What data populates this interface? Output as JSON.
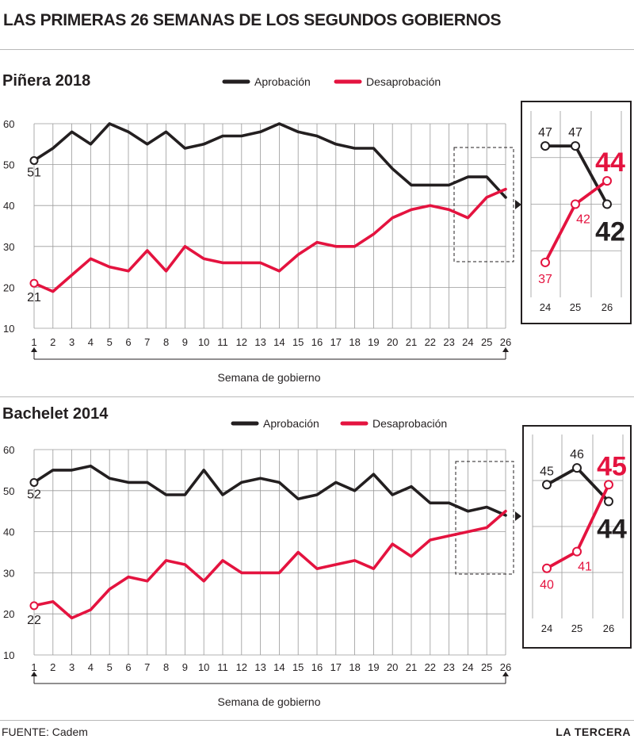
{
  "title": "LAS PRIMERAS 26 SEMANAS DE LOS SEGUNDOS GOBIERNOS",
  "colors": {
    "approval": "#231f20",
    "disapproval": "#e4133f",
    "grid": "#9a9a9a"
  },
  "footer": {
    "source": "FUENTE: Cadem",
    "brand": "LA TERCERA"
  },
  "chart_data": [
    {
      "type": "line",
      "title": "Piñera 2018",
      "xlabel": "Semana de gobierno",
      "ylabel": "",
      "x": [
        1,
        2,
        3,
        4,
        5,
        6,
        7,
        8,
        9,
        10,
        11,
        12,
        13,
        14,
        15,
        16,
        17,
        18,
        19,
        20,
        21,
        22,
        23,
        24,
        25,
        26
      ],
      "ylim": [
        10,
        60
      ],
      "yticks": [
        10,
        20,
        30,
        40,
        50,
        60
      ],
      "series": [
        {
          "name": "Aprobación",
          "color": "#231f20",
          "values": [
            51,
            54,
            58,
            55,
            60,
            58,
            55,
            58,
            54,
            55,
            57,
            57,
            58,
            60,
            58,
            57,
            55,
            54,
            54,
            49,
            45,
            45,
            45,
            47,
            47,
            42
          ]
        },
        {
          "name": "Desaprobación",
          "color": "#e4133f",
          "values": [
            21,
            19,
            23,
            27,
            25,
            24,
            29,
            24,
            30,
            27,
            26,
            26,
            26,
            24,
            28,
            31,
            30,
            30,
            33,
            37,
            39,
            40,
            39,
            37,
            42,
            44
          ]
        }
      ],
      "start_labels": [
        "51",
        "21"
      ],
      "zoom": {
        "weeks": [
          "24",
          "25",
          "26"
        ],
        "approval_labels": [
          "47",
          "47",
          "42"
        ],
        "disapproval_labels": [
          "37",
          "42",
          "44"
        ]
      }
    },
    {
      "type": "line",
      "title": "Bachelet 2014",
      "xlabel": "Semana de gobierno",
      "ylabel": "",
      "x": [
        1,
        2,
        3,
        4,
        5,
        6,
        7,
        8,
        9,
        10,
        11,
        12,
        13,
        14,
        15,
        16,
        17,
        18,
        19,
        20,
        21,
        22,
        23,
        24,
        25,
        26
      ],
      "ylim": [
        10,
        60
      ],
      "yticks": [
        10,
        20,
        30,
        40,
        50,
        60
      ],
      "series": [
        {
          "name": "Aprobación",
          "color": "#231f20",
          "values": [
            52,
            55,
            55,
            56,
            53,
            52,
            52,
            49,
            49,
            55,
            49,
            52,
            53,
            52,
            48,
            49,
            52,
            50,
            54,
            49,
            51,
            47,
            47,
            45,
            46,
            44
          ]
        },
        {
          "name": "Desaprobación",
          "color": "#e4133f",
          "values": [
            22,
            23,
            19,
            21,
            26,
            29,
            28,
            33,
            32,
            28,
            33,
            30,
            30,
            30,
            35,
            31,
            32,
            33,
            31,
            37,
            34,
            38,
            39,
            40,
            41,
            45
          ]
        }
      ],
      "start_labels": [
        "52",
        "22"
      ],
      "zoom": {
        "weeks": [
          "24",
          "25",
          "26"
        ],
        "approval_labels": [
          "45",
          "46",
          "44"
        ],
        "disapproval_labels": [
          "40",
          "41",
          "45"
        ]
      }
    }
  ]
}
